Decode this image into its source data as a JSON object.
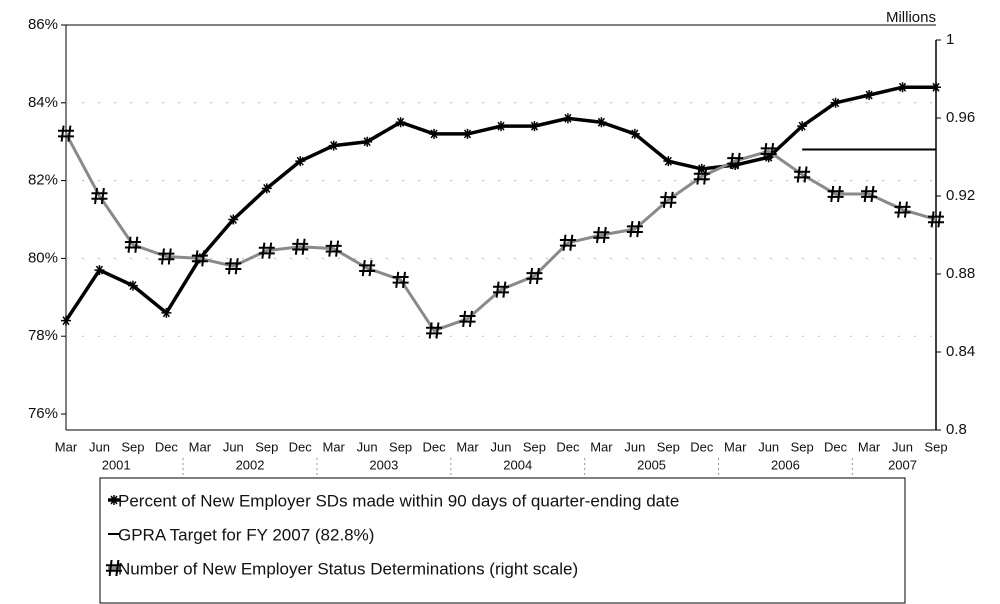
{
  "chart_data": {
    "type": "line",
    "y2_title": "Millions",
    "categories": [
      "Mar",
      "Jun",
      "Sep",
      "Dec",
      "Mar",
      "Jun",
      "Sep",
      "Dec",
      "Mar",
      "Jun",
      "Sep",
      "Dec",
      "Mar",
      "Jun",
      "Sep",
      "Dec",
      "Mar",
      "Jun",
      "Sep",
      "Dec",
      "Mar",
      "Jun",
      "Sep",
      "Dec",
      "Mar",
      "Jun",
      "Sep"
    ],
    "year_labels": [
      "2001",
      "2002",
      "2003",
      "2004",
      "2005",
      "2006",
      "2007"
    ],
    "series": [
      {
        "name": "Percent of New Employer SDs made within 90 days of quarter-ending date",
        "color": "#000000",
        "marker": "star",
        "values": [
          78.4,
          79.7,
          79.3,
          78.6,
          80.0,
          81.0,
          81.8,
          82.5,
          82.9,
          83.0,
          83.5,
          83.2,
          83.2,
          83.4,
          83.4,
          83.6,
          83.5,
          83.2,
          82.5,
          82.3,
          82.4,
          82.6,
          83.4,
          84.0,
          84.2,
          84.4,
          84.4
        ]
      },
      {
        "name": "GPRA Target for FY 2007 (82.8%)",
        "color": "#000000",
        "marker": "none",
        "values": [
          null,
          null,
          null,
          null,
          null,
          null,
          null,
          null,
          null,
          null,
          null,
          null,
          null,
          null,
          null,
          null,
          null,
          null,
          null,
          null,
          null,
          null,
          82.8,
          82.8,
          82.8,
          82.8,
          82.8
        ]
      },
      {
        "name": "Number of New Employer Status Determinations (right scale)",
        "color": "#8a8a8a",
        "marker": "hash",
        "axis": "y2",
        "values": [
          0.952,
          0.92,
          0.895,
          0.889,
          0.888,
          0.884,
          0.892,
          0.894,
          0.893,
          0.883,
          0.877,
          0.851,
          0.857,
          0.872,
          0.879,
          0.896,
          0.9,
          0.903,
          0.918,
          0.93,
          0.938,
          0.943,
          0.931,
          0.921,
          0.921,
          0.913,
          0.908
        ]
      }
    ],
    "ylim": [
      76,
      86
    ],
    "yticks": [
      {
        "value": 76,
        "label": "76%"
      },
      {
        "value": 78,
        "label": "78%"
      },
      {
        "value": 80,
        "label": "80%"
      },
      {
        "value": 82,
        "label": "82%"
      },
      {
        "value": 84,
        "label": "84%"
      },
      {
        "value": 86,
        "label": "86%"
      }
    ],
    "y2lim": [
      0.8,
      1
    ],
    "y2ticks": [
      0.8,
      0.84,
      0.88,
      0.92,
      0.96,
      1
    ],
    "grid": true
  }
}
